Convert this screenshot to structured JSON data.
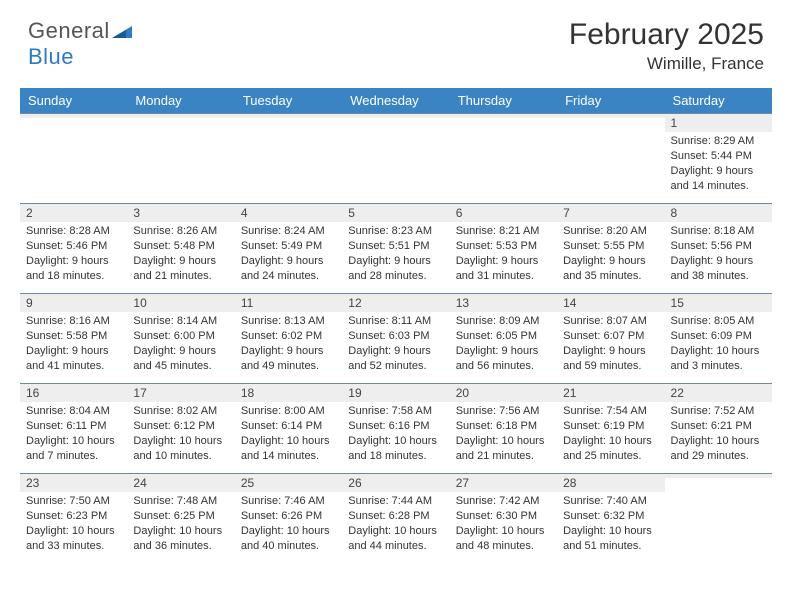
{
  "brand": {
    "text_general": "General",
    "text_blue": "Blue",
    "logo_color": "#2f7ac0"
  },
  "header": {
    "month_title": "February 2025",
    "location": "Wimille, France"
  },
  "colors": {
    "header_row_bg": "#3b84c4",
    "header_row_text": "#ffffff",
    "daynum_bg": "#eeeeee",
    "cell_border": "#6b88a5",
    "body_bg": "#ffffff",
    "text": "#333333"
  },
  "day_names": [
    "Sunday",
    "Monday",
    "Tuesday",
    "Wednesday",
    "Thursday",
    "Friday",
    "Saturday"
  ],
  "weeks": [
    [
      {
        "n": "",
        "sunrise": "",
        "sunset": "",
        "daylight": ""
      },
      {
        "n": "",
        "sunrise": "",
        "sunset": "",
        "daylight": ""
      },
      {
        "n": "",
        "sunrise": "",
        "sunset": "",
        "daylight": ""
      },
      {
        "n": "",
        "sunrise": "",
        "sunset": "",
        "daylight": ""
      },
      {
        "n": "",
        "sunrise": "",
        "sunset": "",
        "daylight": ""
      },
      {
        "n": "",
        "sunrise": "",
        "sunset": "",
        "daylight": ""
      },
      {
        "n": "1",
        "sunrise": "Sunrise: 8:29 AM",
        "sunset": "Sunset: 5:44 PM",
        "daylight": "Daylight: 9 hours and 14 minutes."
      }
    ],
    [
      {
        "n": "2",
        "sunrise": "Sunrise: 8:28 AM",
        "sunset": "Sunset: 5:46 PM",
        "daylight": "Daylight: 9 hours and 18 minutes."
      },
      {
        "n": "3",
        "sunrise": "Sunrise: 8:26 AM",
        "sunset": "Sunset: 5:48 PM",
        "daylight": "Daylight: 9 hours and 21 minutes."
      },
      {
        "n": "4",
        "sunrise": "Sunrise: 8:24 AM",
        "sunset": "Sunset: 5:49 PM",
        "daylight": "Daylight: 9 hours and 24 minutes."
      },
      {
        "n": "5",
        "sunrise": "Sunrise: 8:23 AM",
        "sunset": "Sunset: 5:51 PM",
        "daylight": "Daylight: 9 hours and 28 minutes."
      },
      {
        "n": "6",
        "sunrise": "Sunrise: 8:21 AM",
        "sunset": "Sunset: 5:53 PM",
        "daylight": "Daylight: 9 hours and 31 minutes."
      },
      {
        "n": "7",
        "sunrise": "Sunrise: 8:20 AM",
        "sunset": "Sunset: 5:55 PM",
        "daylight": "Daylight: 9 hours and 35 minutes."
      },
      {
        "n": "8",
        "sunrise": "Sunrise: 8:18 AM",
        "sunset": "Sunset: 5:56 PM",
        "daylight": "Daylight: 9 hours and 38 minutes."
      }
    ],
    [
      {
        "n": "9",
        "sunrise": "Sunrise: 8:16 AM",
        "sunset": "Sunset: 5:58 PM",
        "daylight": "Daylight: 9 hours and 41 minutes."
      },
      {
        "n": "10",
        "sunrise": "Sunrise: 8:14 AM",
        "sunset": "Sunset: 6:00 PM",
        "daylight": "Daylight: 9 hours and 45 minutes."
      },
      {
        "n": "11",
        "sunrise": "Sunrise: 8:13 AM",
        "sunset": "Sunset: 6:02 PM",
        "daylight": "Daylight: 9 hours and 49 minutes."
      },
      {
        "n": "12",
        "sunrise": "Sunrise: 8:11 AM",
        "sunset": "Sunset: 6:03 PM",
        "daylight": "Daylight: 9 hours and 52 minutes."
      },
      {
        "n": "13",
        "sunrise": "Sunrise: 8:09 AM",
        "sunset": "Sunset: 6:05 PM",
        "daylight": "Daylight: 9 hours and 56 minutes."
      },
      {
        "n": "14",
        "sunrise": "Sunrise: 8:07 AM",
        "sunset": "Sunset: 6:07 PM",
        "daylight": "Daylight: 9 hours and 59 minutes."
      },
      {
        "n": "15",
        "sunrise": "Sunrise: 8:05 AM",
        "sunset": "Sunset: 6:09 PM",
        "daylight": "Daylight: 10 hours and 3 minutes."
      }
    ],
    [
      {
        "n": "16",
        "sunrise": "Sunrise: 8:04 AM",
        "sunset": "Sunset: 6:11 PM",
        "daylight": "Daylight: 10 hours and 7 minutes."
      },
      {
        "n": "17",
        "sunrise": "Sunrise: 8:02 AM",
        "sunset": "Sunset: 6:12 PM",
        "daylight": "Daylight: 10 hours and 10 minutes."
      },
      {
        "n": "18",
        "sunrise": "Sunrise: 8:00 AM",
        "sunset": "Sunset: 6:14 PM",
        "daylight": "Daylight: 10 hours and 14 minutes."
      },
      {
        "n": "19",
        "sunrise": "Sunrise: 7:58 AM",
        "sunset": "Sunset: 6:16 PM",
        "daylight": "Daylight: 10 hours and 18 minutes."
      },
      {
        "n": "20",
        "sunrise": "Sunrise: 7:56 AM",
        "sunset": "Sunset: 6:18 PM",
        "daylight": "Daylight: 10 hours and 21 minutes."
      },
      {
        "n": "21",
        "sunrise": "Sunrise: 7:54 AM",
        "sunset": "Sunset: 6:19 PM",
        "daylight": "Daylight: 10 hours and 25 minutes."
      },
      {
        "n": "22",
        "sunrise": "Sunrise: 7:52 AM",
        "sunset": "Sunset: 6:21 PM",
        "daylight": "Daylight: 10 hours and 29 minutes."
      }
    ],
    [
      {
        "n": "23",
        "sunrise": "Sunrise: 7:50 AM",
        "sunset": "Sunset: 6:23 PM",
        "daylight": "Daylight: 10 hours and 33 minutes."
      },
      {
        "n": "24",
        "sunrise": "Sunrise: 7:48 AM",
        "sunset": "Sunset: 6:25 PM",
        "daylight": "Daylight: 10 hours and 36 minutes."
      },
      {
        "n": "25",
        "sunrise": "Sunrise: 7:46 AM",
        "sunset": "Sunset: 6:26 PM",
        "daylight": "Daylight: 10 hours and 40 minutes."
      },
      {
        "n": "26",
        "sunrise": "Sunrise: 7:44 AM",
        "sunset": "Sunset: 6:28 PM",
        "daylight": "Daylight: 10 hours and 44 minutes."
      },
      {
        "n": "27",
        "sunrise": "Sunrise: 7:42 AM",
        "sunset": "Sunset: 6:30 PM",
        "daylight": "Daylight: 10 hours and 48 minutes."
      },
      {
        "n": "28",
        "sunrise": "Sunrise: 7:40 AM",
        "sunset": "Sunset: 6:32 PM",
        "daylight": "Daylight: 10 hours and 51 minutes."
      },
      {
        "n": "",
        "sunrise": "",
        "sunset": "",
        "daylight": ""
      }
    ]
  ]
}
